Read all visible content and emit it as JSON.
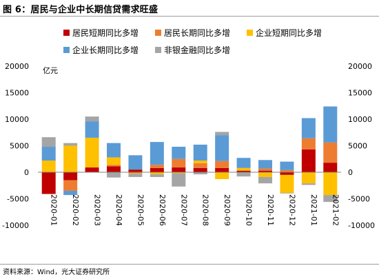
{
  "title": "图 6：居民与企业中长期信贷需求旺盛",
  "source": "资料来源：Wind，光大证券研究所",
  "chart_data": {
    "type": "bar",
    "stacked": true,
    "categories": [
      "2020-01",
      "2020-02",
      "2020-03",
      "2020-04",
      "2020-05",
      "2020-06",
      "2020-07",
      "2020-08",
      "2020-09",
      "2020-10",
      "2020-11",
      "2020-12",
      "2021-01",
      "2021-02"
    ],
    "unit_label": "亿元",
    "ylim": [
      -10000,
      20000
    ],
    "yticks": [
      -10000,
      -5000,
      0,
      5000,
      10000,
      15000,
      20000
    ],
    "legend_position": "top",
    "series": [
      {
        "name": "居民短期同比多增",
        "color": "#c00000",
        "values": [
          -4100,
          -1500,
          900,
          1100,
          500,
          800,
          900,
          800,
          800,
          300,
          300,
          -500,
          4300,
          1800
        ]
      },
      {
        "name": "居民长期同比多增",
        "color": "#ed7d31",
        "values": [
          0,
          -2000,
          0,
          300,
          -200,
          600,
          1600,
          900,
          1300,
          0,
          400,
          400,
          2100,
          3800
        ]
      },
      {
        "name": "企业短期同比多增",
        "color": "#ffc000",
        "values": [
          2200,
          5000,
          5600,
          1400,
          -100,
          -400,
          -200,
          500,
          -1300,
          500,
          -900,
          -3400,
          -2100,
          -4300
        ]
      },
      {
        "name": "企业长期同比多增",
        "color": "#5b9bd5",
        "values": [
          2600,
          -800,
          3100,
          2700,
          2700,
          4300,
          2300,
          3000,
          4900,
          1900,
          1600,
          1600,
          3800,
          6800
        ]
      },
      {
        "name": "非银金融同比多增",
        "color": "#a5a5a5",
        "values": [
          1800,
          500,
          900,
          -1000,
          -600,
          -500,
          -2500,
          -400,
          600,
          -800,
          -1200,
          -100,
          -300,
          -1300
        ]
      }
    ]
  }
}
